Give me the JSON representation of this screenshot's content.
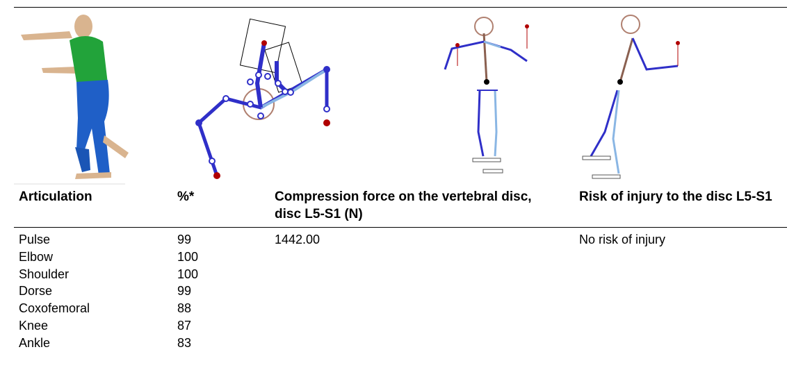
{
  "table": {
    "headers": [
      "Articulation",
      "%*",
      "Compression force on the vertebral disc, disc L5-S1 (N)",
      "Risk of injury to the disc L5-S1"
    ],
    "rows": [
      {
        "articulation": "Pulse",
        "percent": 99
      },
      {
        "articulation": "Elbow",
        "percent": 100
      },
      {
        "articulation": "Shoulder",
        "percent": 100
      },
      {
        "articulation": "Dorse",
        "percent": 99
      },
      {
        "articulation": "Coxofemoral",
        "percent": 88
      },
      {
        "articulation": "Knee",
        "percent": 87
      },
      {
        "articulation": "Ankle",
        "percent": 83
      }
    ],
    "compression_force": "1442.00",
    "risk": "No risk of injury"
  }
}
